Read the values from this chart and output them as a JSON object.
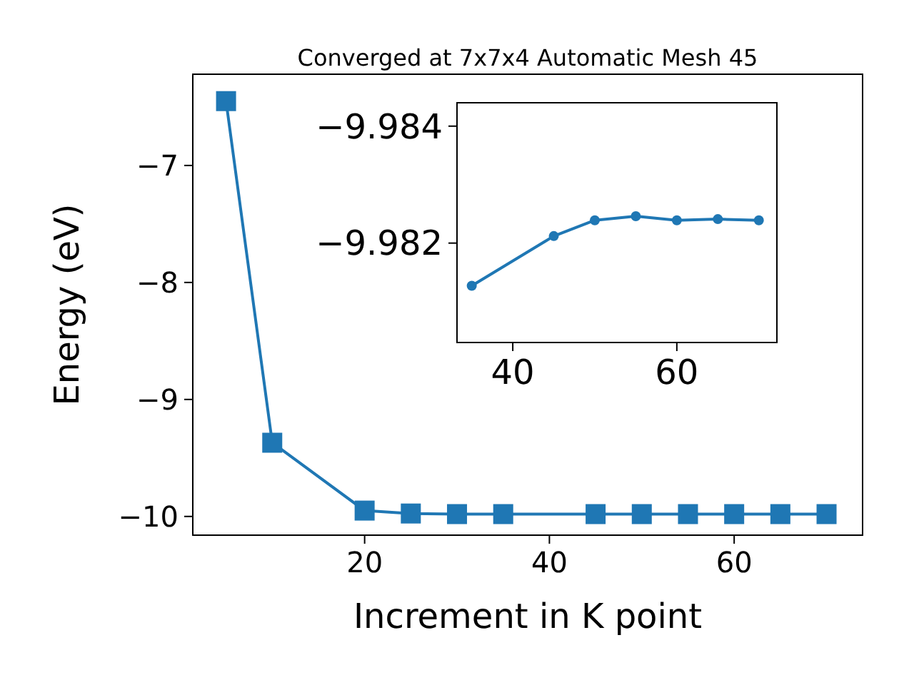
{
  "chart_data": [
    {
      "type": "line",
      "title": "Converged at 7x7x4 Automatic Mesh 45",
      "xlabel": "Increment in K point",
      "ylabel": "Energy (eV)",
      "marker": "square",
      "line_style": "solid",
      "grid": false,
      "series": [
        {
          "color": "#1f77b4",
          "x": [
            5,
            10,
            20,
            25,
            30,
            35,
            45,
            50,
            55,
            60,
            65,
            70
          ],
          "values": [
            -6.45,
            -9.37,
            -9.95,
            -9.975,
            -9.98,
            -9.98,
            -9.98,
            -9.98,
            -9.98,
            -9.98,
            -9.98,
            -9.98
          ]
        }
      ],
      "xlim": [
        1.4,
        73.9
      ],
      "ylim": [
        -10.16,
        -6.22
      ],
      "xticks": [
        20,
        40,
        60
      ],
      "yticks": [
        {
          "value": -10,
          "label": "−10"
        },
        {
          "value": -9,
          "label": "−9"
        },
        {
          "value": -8,
          "label": "−8"
        },
        {
          "value": -7,
          "label": "−7"
        }
      ]
    },
    {
      "type": "line",
      "marker": "circle",
      "line_style": "solid",
      "grid": false,
      "series": [
        {
          "color": "#1f77b4",
          "x": [
            35,
            45,
            50,
            55,
            60,
            65,
            70
          ],
          "values": [
            -9.98127,
            -9.98212,
            -9.98239,
            -9.98246,
            -9.98239,
            -9.98241,
            -9.98239
          ]
        }
      ],
      "xlim": [
        33.2,
        72.2
      ],
      "ylim": [
        -9.9803,
        -9.9844
      ],
      "xticks": [
        40,
        60
      ],
      "yticks": [
        {
          "value": -9.982,
          "label": "−9.982"
        },
        {
          "value": -9.984,
          "label": "−9.984"
        }
      ]
    }
  ]
}
